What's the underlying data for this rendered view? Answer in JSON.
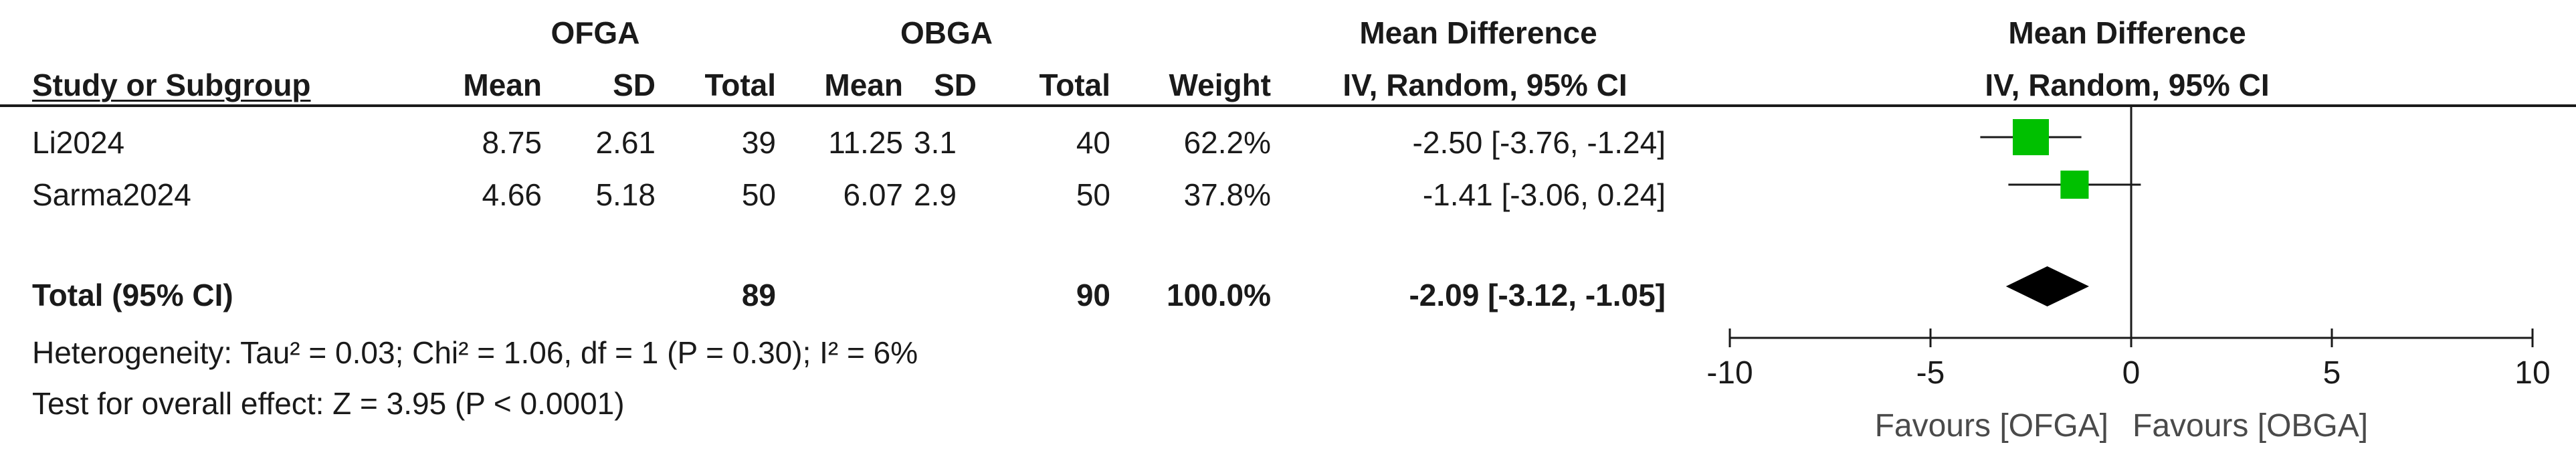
{
  "header": {
    "group1": "OFGA",
    "group2": "OBGA",
    "effect_title": "Mean Difference",
    "effect_method": "IV, Random, 95% CI",
    "plot_title": "Mean Difference",
    "plot_method": "IV, Random, 95% CI",
    "col_study": "Study or Subgroup",
    "col_mean1": "Mean",
    "col_sd1": "SD",
    "col_total1": "Total",
    "col_mean2": "Mean",
    "col_sd2": "SD",
    "col_total2": "Total",
    "col_weight": "Weight"
  },
  "studies": [
    {
      "name": "Li2024",
      "mean1": "8.75",
      "sd1": "2.61",
      "total1": "39",
      "mean2": "11.25",
      "sd2": "3.1",
      "total2": "40",
      "weight": "62.2%",
      "ci_text": "-2.50 [-3.76, -1.24]"
    },
    {
      "name": "Sarma2024",
      "mean1": "4.66",
      "sd1": "5.18",
      "total1": "50",
      "mean2": "6.07",
      "sd2": "2.9",
      "total2": "50",
      "weight": "37.8%",
      "ci_text": "-1.41 [-3.06, 0.24]"
    }
  ],
  "total": {
    "label": "Total (95% CI)",
    "total1": "89",
    "total2": "90",
    "weight": "100.0%",
    "ci_text": "-2.09 [-3.12, -1.05]"
  },
  "heterogeneity": "Heterogeneity: Tau² = 0.03; Chi² = 1.06, df = 1 (P = 0.30); I² = 6%",
  "overall_effect": "Test for overall effect: Z = 3.95 (P < 0.0001)",
  "axis": {
    "ticks": [
      "-10",
      "-5",
      "0",
      "5",
      "10"
    ],
    "favours_left": "Favours [OFGA]",
    "favours_right": "Favours [OBGA]"
  },
  "colors": {
    "study_marker": "#00c000",
    "diamond": "#000000",
    "text": "#1a1a1a"
  },
  "chart_data": {
    "type": "forest",
    "xlim": [
      -10,
      10
    ],
    "x_ticks": [
      -10,
      -5,
      0,
      5,
      10
    ],
    "null_line": 0,
    "studies": [
      {
        "name": "Li2024",
        "estimate": -2.5,
        "ci_low": -3.76,
        "ci_high": -1.24,
        "weight": 62.2
      },
      {
        "name": "Sarma2024",
        "estimate": -1.41,
        "ci_low": -3.06,
        "ci_high": 0.24,
        "weight": 37.8
      }
    ],
    "pooled": {
      "estimate": -2.09,
      "ci_low": -3.12,
      "ci_high": -1.05
    }
  }
}
